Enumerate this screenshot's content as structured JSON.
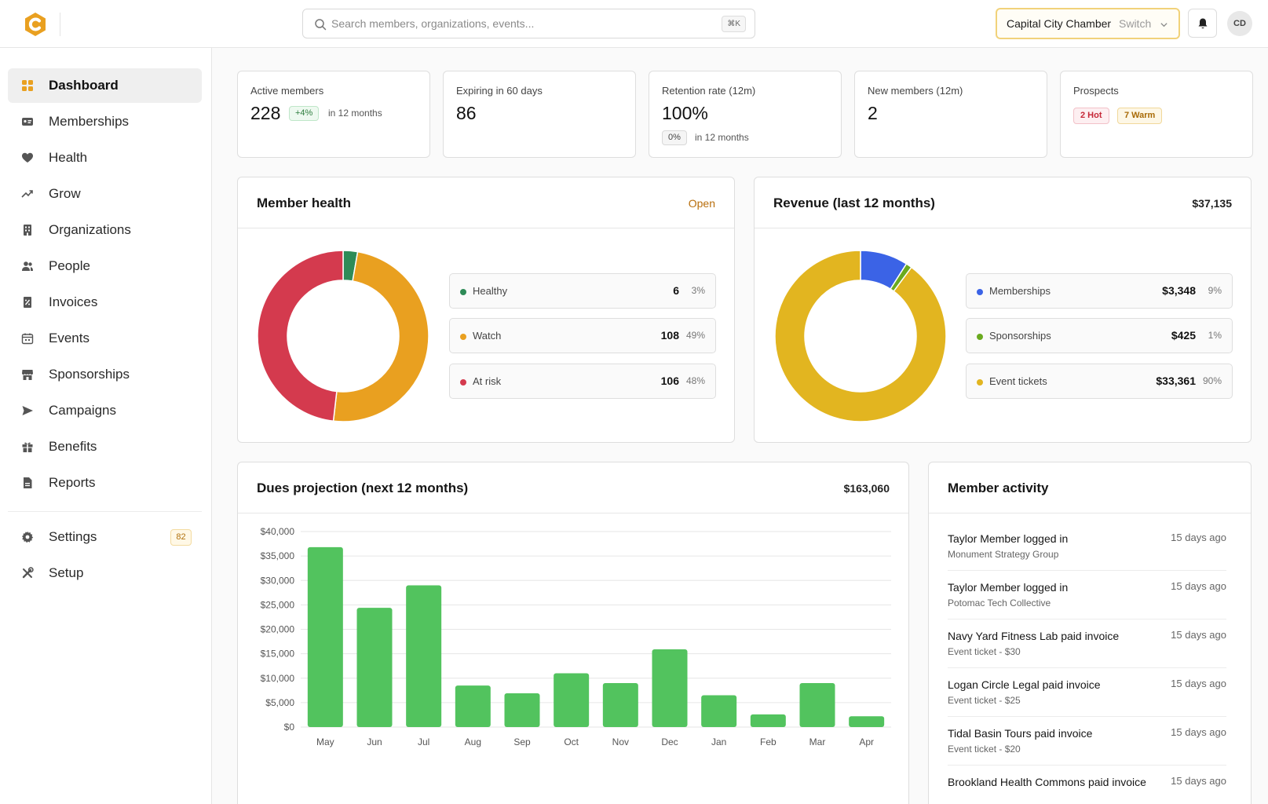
{
  "header": {
    "search_placeholder": "Search members, organizations, events...",
    "search_shortcut": "⌘K",
    "org_name": "Capital City Chamber",
    "org_switch_label": "Switch",
    "user_initials": "CD"
  },
  "sidebar": {
    "items": [
      {
        "label": "Dashboard",
        "icon": "grid-icon",
        "active": true
      },
      {
        "label": "Memberships",
        "icon": "id-card-icon"
      },
      {
        "label": "Health",
        "icon": "heart-icon"
      },
      {
        "label": "Grow",
        "icon": "trend-up-icon"
      },
      {
        "label": "Organizations",
        "icon": "building-icon"
      },
      {
        "label": "People",
        "icon": "users-icon"
      },
      {
        "label": "Invoices",
        "icon": "invoice-icon"
      },
      {
        "label": "Events",
        "icon": "calendar-icon"
      },
      {
        "label": "Sponsorships",
        "icon": "store-icon"
      },
      {
        "label": "Campaigns",
        "icon": "send-icon"
      },
      {
        "label": "Benefits",
        "icon": "gift-icon"
      },
      {
        "label": "Reports",
        "icon": "document-icon"
      }
    ],
    "settings": {
      "label": "Settings",
      "badge": "82"
    },
    "setup": {
      "label": "Setup"
    }
  },
  "stats": {
    "active": {
      "label": "Active members",
      "value": "228",
      "delta": "+4%",
      "note": "in 12 months"
    },
    "expiring": {
      "label": "Expiring in 60 days",
      "value": "86"
    },
    "retention": {
      "label": "Retention rate (12m)",
      "value": "100%",
      "delta": "0%",
      "note": "in 12 months"
    },
    "new_members": {
      "label": "New members (12m)",
      "value": "2"
    },
    "prospects": {
      "label": "Prospects",
      "hot": "2 Hot",
      "warm": "7 Warm"
    }
  },
  "member_health": {
    "title": "Member health",
    "link": "Open",
    "segments": [
      {
        "name": "Healthy",
        "value": "6",
        "pct": "3%",
        "color": "#2e8b57"
      },
      {
        "name": "Watch",
        "value": "108",
        "pct": "49%",
        "color": "#e9a020"
      },
      {
        "name": "At risk",
        "value": "106",
        "pct": "48%",
        "color": "#d43a4e"
      }
    ]
  },
  "revenue": {
    "title": "Revenue (last 12 months)",
    "total": "$37,135",
    "segments": [
      {
        "name": "Memberships",
        "value": "$3,348",
        "pct": "9%",
        "color": "#3b63e6"
      },
      {
        "name": "Sponsorships",
        "value": "$425",
        "pct": "1%",
        "color": "#6aaa1f"
      },
      {
        "name": "Event tickets",
        "value": "$33,361",
        "pct": "90%",
        "color": "#e2b520"
      }
    ]
  },
  "dues": {
    "title": "Dues projection (next 12 months)",
    "total": "$163,060"
  },
  "chart_data": {
    "type": "bar",
    "categories": [
      "May",
      "Jun",
      "Jul",
      "Aug",
      "Sep",
      "Oct",
      "Nov",
      "Dec",
      "Jan",
      "Feb",
      "Mar",
      "Apr"
    ],
    "values": [
      36800,
      24400,
      29000,
      8500,
      6900,
      11000,
      9000,
      15900,
      6500,
      2600,
      9000,
      2200
    ],
    "ylim": [
      0,
      40000
    ],
    "yticks": [
      0,
      5000,
      10000,
      15000,
      20000,
      25000,
      30000,
      35000,
      40000
    ],
    "ytick_labels": [
      "$0",
      "$5,000",
      "$10,000",
      "$15,000",
      "$20,000",
      "$25,000",
      "$30,000",
      "$35,000",
      "$40,000"
    ],
    "bar_color": "#52c35e",
    "grid": true
  },
  "activity": {
    "title": "Member activity",
    "items": [
      {
        "title": "Taylor Member logged in",
        "sub": "Monument Strategy Group",
        "time": "15 days ago"
      },
      {
        "title": "Taylor Member logged in",
        "sub": "Potomac Tech Collective",
        "time": "15 days ago"
      },
      {
        "title": "Navy Yard Fitness Lab paid invoice",
        "sub": "Event ticket - $30",
        "time": "15 days ago"
      },
      {
        "title": "Logan Circle Legal paid invoice",
        "sub": "Event ticket - $25",
        "time": "15 days ago"
      },
      {
        "title": "Tidal Basin Tours paid invoice",
        "sub": "Event ticket - $20",
        "time": "15 days ago"
      },
      {
        "title": "Brookland Health Commons paid invoice",
        "sub": "",
        "time": "15 days ago"
      }
    ]
  }
}
